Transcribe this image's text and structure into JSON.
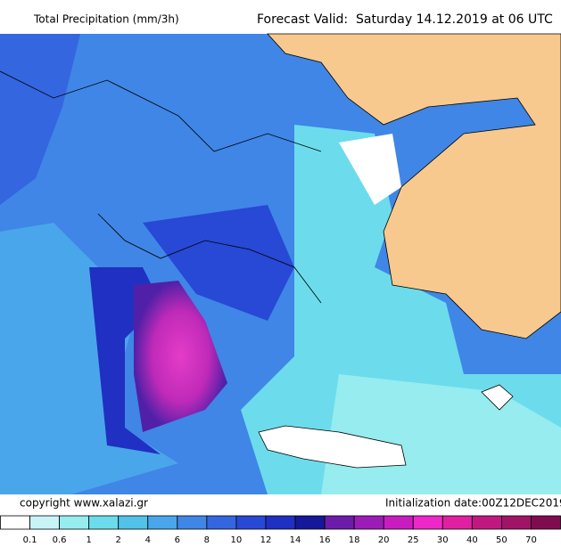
{
  "header": {
    "title": "Total Precipitation (mm/3h)",
    "forecast": "Forecast Valid:  Saturday 14.12.2019 at 06 UTC"
  },
  "footer": {
    "copyright": "copyright www.xalazi.gr",
    "initialization": "Initialization date:00Z12DEC2019"
  },
  "legend": {
    "colors": [
      "#ffffff",
      "#c8f4f6",
      "#96ecef",
      "#6cdcec",
      "#52c2ea",
      "#4aa6ea",
      "#3f86e6",
      "#3466e0",
      "#2848d6",
      "#2030c2",
      "#151898",
      "#6c1ca8",
      "#9c1cb8",
      "#c81cc0",
      "#ee28c8",
      "#e020a0",
      "#c01880",
      "#a01468",
      "#800c50"
    ],
    "labels": [
      0.1,
      0.6,
      1,
      2,
      4,
      6,
      8,
      10,
      12,
      14,
      16,
      18,
      20,
      25,
      30,
      40,
      50,
      70
    ]
  }
}
